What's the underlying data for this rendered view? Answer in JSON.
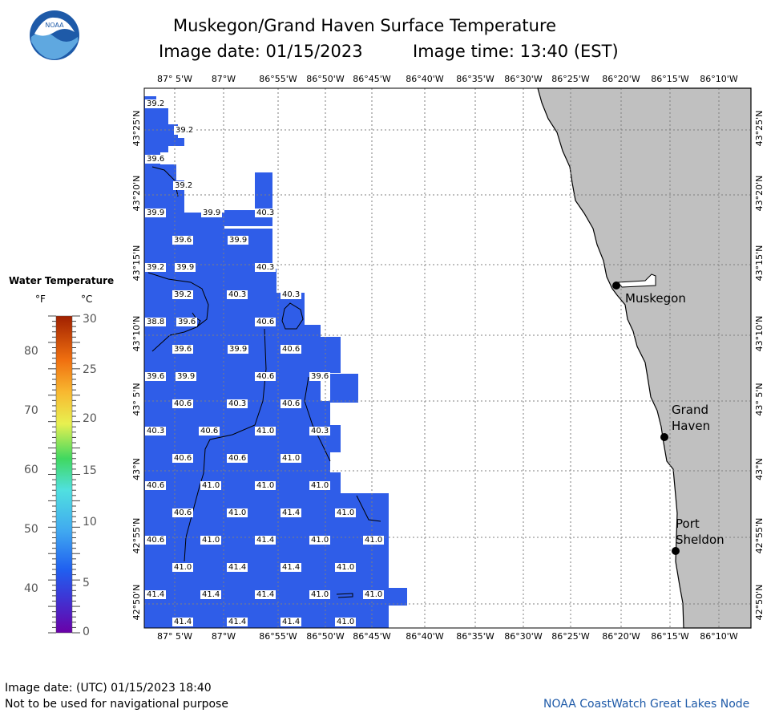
{
  "header": {
    "title": "Muskegon/Grand Haven Surface Temperature",
    "image_date": "Image date: 01/15/2023",
    "image_time": "Image time: 13:40 (EST)"
  },
  "logo": {
    "text": "NOAA"
  },
  "axes": {
    "lon_labels": [
      "87° 5'W",
      "87°W",
      "86°55'W",
      "86°50'W",
      "86°45'W",
      "86°40'W",
      "86°35'W",
      "86°30'W",
      "86°25'W",
      "86°20'W",
      "86°15'W",
      "86°10'W"
    ],
    "lat_labels": [
      "43°25'N",
      "43°20'N",
      "43°15'N",
      "43°10'N",
      "43° 5'N",
      "43°N",
      "42°55'N",
      "42°50'N"
    ]
  },
  "legend": {
    "title": "Water Temperature",
    "unit_f": "°F",
    "unit_c": "°C",
    "f_ticks": [
      "80",
      "70",
      "60",
      "50",
      "40"
    ],
    "c_ticks": [
      "30",
      "25",
      "20",
      "15",
      "10",
      "5",
      "0"
    ]
  },
  "places": {
    "muskegon": "Muskegon",
    "grand_haven_1": "Grand",
    "grand_haven_2": "Haven",
    "port_sheldon_1": "Port",
    "port_sheldon_2": "Sheldon"
  },
  "temperature_labels": [
    "39.2",
    "39.2",
    "39.6",
    "39.2",
    "39.9",
    "39.9",
    "40.3",
    "39.6",
    "39.9",
    "39.2",
    "39.9",
    "40.3",
    "39.2",
    "40.3",
    "40.3",
    "38.8",
    "39.6",
    "40.6",
    "39.6",
    "39.9",
    "40.6",
    "39.6",
    "39.9",
    "40.6",
    "39.6",
    "40.6",
    "40.3",
    "40.6",
    "40.3",
    "40.6",
    "41.0",
    "40.3",
    "40.6",
    "40.6",
    "41.0",
    "40.6",
    "41.0",
    "41.0",
    "41.0",
    "40.6",
    "41.0",
    "41.4",
    "41.0",
    "40.6",
    "41.0",
    "41.4",
    "41.0",
    "41.0",
    "41.0",
    "41.4",
    "41.4",
    "41.0",
    "41.4",
    "41.4",
    "41.4",
    "41.0",
    "41.0",
    "41.4",
    "41.4",
    "41.4",
    "41.0"
  ],
  "colors": {
    "water": "#2f5de8",
    "land": "#c0c0c0",
    "grid": "#7f7f7f"
  },
  "footer": {
    "utc_date": "Image date: (UTC) 01/15/2023  18:40",
    "disclaimer": "Not to be used for navigational purpose",
    "credit": "NOAA CoastWatch Great Lakes Node"
  }
}
